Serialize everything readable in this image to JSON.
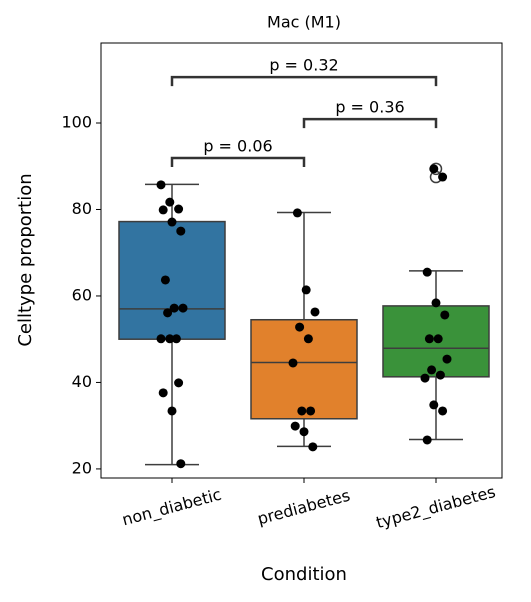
{
  "chart_data": {
    "type": "box",
    "title": "Mac (M1)",
    "x_label": "Condition",
    "y_label": "Celltype proportion",
    "categories": [
      "non_diabetic",
      "prediabetes",
      "type2_diabetes"
    ],
    "colors": [
      "#3274a1",
      "#e1812c",
      "#3a923a"
    ],
    "boxes": [
      {
        "low": 21,
        "q1": 50,
        "median": 57,
        "q3": 77.2,
        "high": 85.8,
        "outliers": []
      },
      {
        "low": 25.2,
        "q1": 31.6,
        "median": 44.6,
        "q3": 54.5,
        "high": 79.3,
        "outliers": []
      },
      {
        "low": 26.8,
        "q1": 41.3,
        "median": 47.9,
        "q3": 57.7,
        "high": 65.8,
        "outliers": [
          89.4,
          87.5
        ]
      }
    ],
    "points": [
      [
        85.7,
        81.7,
        80.1,
        79.9,
        77.1,
        75.0,
        63.7,
        57.2,
        57.2,
        56.1,
        50.1,
        50.1,
        50.1,
        39.9,
        37.6,
        33.4,
        21.2
      ],
      [
        79.2,
        61.4,
        56.3,
        52.8,
        50.1,
        44.5,
        33.4,
        33.4,
        29.9,
        28.6,
        25.1
      ],
      [
        89.4,
        87.5,
        65.5,
        58.4,
        55.6,
        50.1,
        50.1,
        45.4,
        42.9,
        41.7,
        41.0,
        34.8,
        33.4,
        26.7
      ]
    ],
    "annotations": [
      {
        "text": "p = 0.06",
        "from": 0,
        "to": 1,
        "y": 91.9
      },
      {
        "text": "p = 0.36",
        "from": 1,
        "to": 2,
        "y": 100.9
      },
      {
        "text": "p = 0.32",
        "from": 0,
        "to": 2,
        "y": 110.6
      }
    ],
    "ylim": [
      17.9,
      118.5
    ],
    "yticks": [
      20,
      40,
      60,
      80,
      100
    ]
  }
}
